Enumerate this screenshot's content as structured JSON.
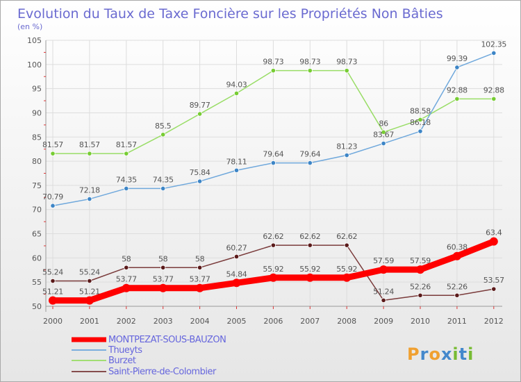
{
  "chart_data": {
    "type": "line",
    "title": "Evolution du Taux de Taxe Foncière sur les Propriétés Non Bâties",
    "subtitle": "(en %)",
    "x": [
      "2000",
      "2001",
      "2002",
      "2003",
      "2004",
      "2005",
      "2006",
      "2007",
      "2008",
      "2009",
      "2010",
      "2011",
      "2012"
    ],
    "ylim": [
      50,
      105
    ],
    "yticks": [
      50,
      55,
      60,
      65,
      70,
      75,
      80,
      85,
      90,
      95,
      100,
      105
    ],
    "grid": true,
    "legend_position": "bottom-left",
    "series": [
      {
        "name": "MONTPEZAT-SOUS-BAUZON",
        "color": "#ff0000",
        "marker": "#ff0000",
        "width": 9,
        "values": [
          51.21,
          51.21,
          53.77,
          53.77,
          53.77,
          54.84,
          55.92,
          55.92,
          55.92,
          57.59,
          57.59,
          60.38,
          63.4
        ],
        "labels": [
          "51.21",
          "51.21",
          "53.77",
          "53.77",
          "53.77",
          "54.84",
          "55.92",
          "55.92",
          "55.92",
          "57.59",
          "57.59",
          "60.38",
          "63.4"
        ]
      },
      {
        "name": "Thueyts",
        "color": "#6fa8dc",
        "marker": "#3d85c6",
        "width": 1.5,
        "values": [
          70.79,
          72.18,
          74.35,
          74.35,
          75.84,
          78.11,
          79.64,
          79.64,
          81.23,
          83.67,
          86.18,
          99.39,
          102.35
        ],
        "labels": [
          "70.79",
          "72.18",
          "74.35",
          "74.35",
          "75.84",
          "78.11",
          "79.64",
          "79.64",
          "81.23",
          "83.67",
          "86.18",
          "99.39",
          "102.35"
        ]
      },
      {
        "name": "Burzet",
        "color": "#99dd66",
        "marker": "#77cc33",
        "width": 1.5,
        "values": [
          81.57,
          81.57,
          81.57,
          85.5,
          89.77,
          94.03,
          98.73,
          98.73,
          98.73,
          86,
          88.58,
          92.88,
          92.88
        ],
        "labels": [
          "81.57",
          "81.57",
          "81.57",
          "85.5",
          "89.77",
          "94.03",
          "98.73",
          "98.73",
          "98.73",
          "86",
          "88.58",
          "92.88",
          "92.88"
        ]
      },
      {
        "name": "Saint-Pierre-de-Colombier",
        "color": "#7a3b3b",
        "marker": "#5a1a1a",
        "width": 1.5,
        "values": [
          55.24,
          55.24,
          58,
          58,
          58,
          60.27,
          62.62,
          62.62,
          62.62,
          51.24,
          52.26,
          52.26,
          53.57
        ],
        "labels": [
          "55.24",
          "55.24",
          "58",
          "58",
          "58",
          "60.27",
          "62.62",
          "62.62",
          "62.62",
          "51.24",
          "52.26",
          "52.26",
          "53.57"
        ]
      }
    ]
  },
  "watermark": "Proxiti",
  "colors": {
    "title": "#6a6ad0",
    "axis": "#555555",
    "grid": "#dddddd",
    "label": "#555555",
    "legend_text": "#6666dd"
  }
}
